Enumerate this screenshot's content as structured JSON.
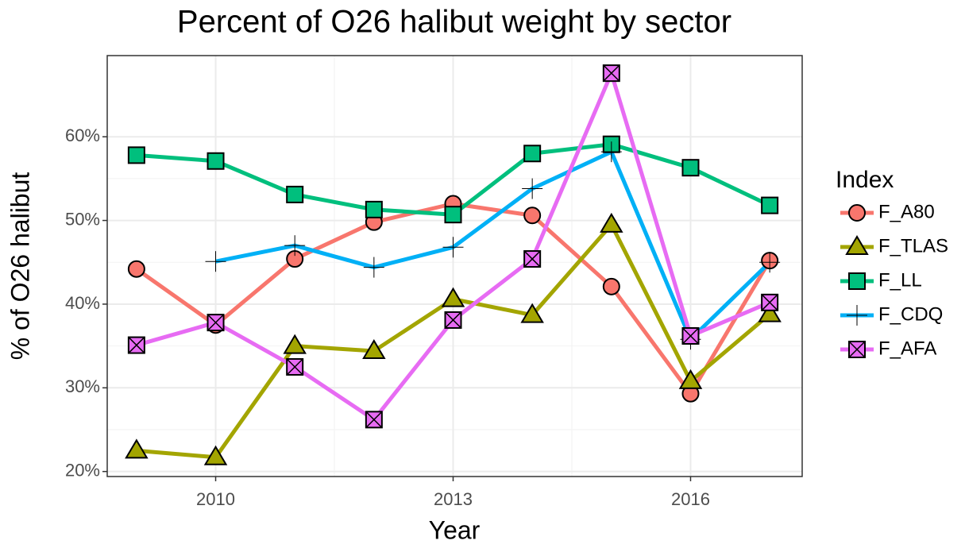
{
  "chart_data": {
    "type": "line",
    "title": "Percent of O26 halibut weight by sector",
    "x_label": "Year",
    "y_label": "% of O26 halibut",
    "legend_title": "Index",
    "legend_position": "right",
    "grid": true,
    "x": [
      2009,
      2010,
      2011,
      2012,
      2013,
      2014,
      2015,
      2016,
      2017
    ],
    "xlim": [
      2008.63,
      2017.41
    ],
    "xticks": [
      2010,
      2013,
      2016
    ],
    "ylim": [
      19.4,
      69.7
    ],
    "yticks": [
      {
        "value": 20,
        "label": "20%"
      },
      {
        "value": 30,
        "label": "30%"
      },
      {
        "value": 40,
        "label": "40%"
      },
      {
        "value": 50,
        "label": "50%"
      },
      {
        "value": 60,
        "label": "60%"
      }
    ],
    "series": [
      {
        "name": "F_A80",
        "color": "#F8766D",
        "marker": "circle",
        "values": [
          44.2,
          37.5,
          45.4,
          49.8,
          52.0,
          50.6,
          42.1,
          29.3,
          45.2
        ]
      },
      {
        "name": "F_TLAS",
        "color": "#A3A500",
        "marker": "triangle",
        "values": [
          22.5,
          21.7,
          35.0,
          34.4,
          40.6,
          38.7,
          49.5,
          30.8,
          38.8
        ]
      },
      {
        "name": "F_LL",
        "color": "#00BF7D",
        "marker": "square",
        "values": [
          57.8,
          57.1,
          53.1,
          51.3,
          50.7,
          58.0,
          59.1,
          56.3,
          51.8
        ]
      },
      {
        "name": "F_CDQ",
        "color": "#00B0F6",
        "marker": "plus",
        "values": [
          null,
          45.1,
          47.0,
          44.4,
          46.8,
          53.8,
          58.2,
          35.8,
          45.0
        ]
      },
      {
        "name": "F_AFA",
        "color": "#E76BF3",
        "marker": "square-x",
        "values": [
          35.1,
          37.8,
          32.5,
          26.2,
          38.1,
          45.4,
          67.6,
          36.2,
          40.2
        ]
      }
    ]
  }
}
